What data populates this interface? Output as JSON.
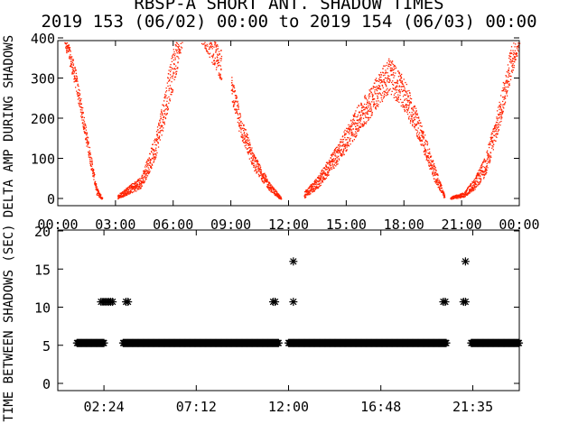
{
  "title": "RBSP-A SHORT ANT. SHADOW TIMES",
  "subtitle": "2019 153 (06/02) 00:00 to 2019 154 (06/03) 00:00",
  "colors": {
    "top_points": "#ff2200",
    "bottom_points": "#000000",
    "axes": "#000000",
    "background": "#ffffff"
  },
  "chart_data": [
    {
      "type": "scatter",
      "ylabel": "DELTA AMP DURING SHADOWS",
      "xlabel": "",
      "xlim": [
        0,
        24
      ],
      "ylim": [
        0,
        400
      ],
      "x_tick_labels": [
        "00:00",
        "03:00",
        "06:00",
        "09:00",
        "12:00",
        "15:00",
        "18:00",
        "21:00",
        "00:00"
      ],
      "y_tick_labels": [
        "0",
        "100",
        "200",
        "300",
        "400"
      ],
      "y_tick_values": [
        0,
        100,
        200,
        300,
        400
      ],
      "grid": false,
      "marker_color": "#ff2200",
      "bands": [
        {
          "x": [
            0.25,
            0.9,
            1.6,
            2.0,
            2.3
          ],
          "y_center": [
            420,
            300,
            120,
            20,
            0
          ],
          "spread": [
            20,
            25,
            20,
            10,
            3
          ]
        },
        {
          "x": [
            3.1,
            3.6,
            4.3,
            5.0,
            5.5,
            6.0,
            6.5
          ],
          "y_center": [
            5,
            20,
            40,
            120,
            220,
            330,
            410
          ],
          "spread": [
            5,
            10,
            15,
            30,
            40,
            50,
            20
          ]
        },
        {
          "x": [
            7.2,
            7.8,
            8.5
          ],
          "y_center": [
            420,
            390,
            330
          ],
          "spread": [
            20,
            30,
            40
          ]
        },
        {
          "x": [
            9.0,
            9.5,
            10.2,
            11.0,
            11.6
          ],
          "y_center": [
            280,
            180,
            90,
            30,
            0
          ],
          "spread": [
            30,
            30,
            20,
            10,
            4
          ]
        },
        {
          "x": [
            12.8,
            13.5,
            14.5,
            15.5,
            16.5,
            17.2,
            18.0,
            18.8,
            19.6,
            20.1
          ],
          "y_center": [
            10,
            40,
            110,
            190,
            260,
            310,
            260,
            170,
            60,
            5
          ],
          "spread": [
            8,
            15,
            25,
            35,
            40,
            45,
            40,
            30,
            20,
            5
          ]
        },
        {
          "x": [
            20.4,
            21.1,
            21.7,
            22.2,
            22.8,
            23.5,
            24.0
          ],
          "y_center": [
            2,
            10,
            40,
            80,
            180,
            330,
            410
          ],
          "spread": [
            3,
            6,
            15,
            25,
            35,
            40,
            30
          ]
        }
      ]
    },
    {
      "type": "scatter",
      "ylabel": "TIME BETWEEN SHADOWS (SEC)",
      "xlabel": "",
      "xlim": [
        0,
        24
      ],
      "ylim": [
        0,
        20
      ],
      "x_tick_labels": [
        "02:24",
        "07:12",
        "12:00",
        "16:48",
        "21:35"
      ],
      "x_tick_values": [
        2.4,
        7.2,
        12.0,
        16.8,
        21.583
      ],
      "y_tick_labels": [
        "0",
        "5",
        "10",
        "15",
        "20"
      ],
      "y_tick_values": [
        0,
        5,
        10,
        15,
        20
      ],
      "grid": false,
      "marker": "asterisk",
      "marker_color": "#000000",
      "baseline": {
        "y": 5.3,
        "x_ranges": [
          [
            1.0,
            2.4
          ],
          [
            3.4,
            11.5
          ],
          [
            12.0,
            20.2
          ],
          [
            21.5,
            24.0
          ]
        ]
      },
      "points": [
        {
          "x": 2.25,
          "y": 10.7
        },
        {
          "x": 2.35,
          "y": 10.7
        },
        {
          "x": 2.45,
          "y": 10.7
        },
        {
          "x": 2.55,
          "y": 10.7
        },
        {
          "x": 2.65,
          "y": 10.7
        },
        {
          "x": 2.75,
          "y": 10.7
        },
        {
          "x": 2.85,
          "y": 10.7
        },
        {
          "x": 3.55,
          "y": 10.7
        },
        {
          "x": 3.65,
          "y": 10.7
        },
        {
          "x": 11.2,
          "y": 10.7
        },
        {
          "x": 11.3,
          "y": 10.7
        },
        {
          "x": 12.25,
          "y": 10.7
        },
        {
          "x": 12.25,
          "y": 16.0
        },
        {
          "x": 20.05,
          "y": 10.7
        },
        {
          "x": 20.15,
          "y": 10.7
        },
        {
          "x": 21.1,
          "y": 10.7
        },
        {
          "x": 21.2,
          "y": 10.7
        },
        {
          "x": 21.2,
          "y": 16.0
        }
      ]
    }
  ]
}
